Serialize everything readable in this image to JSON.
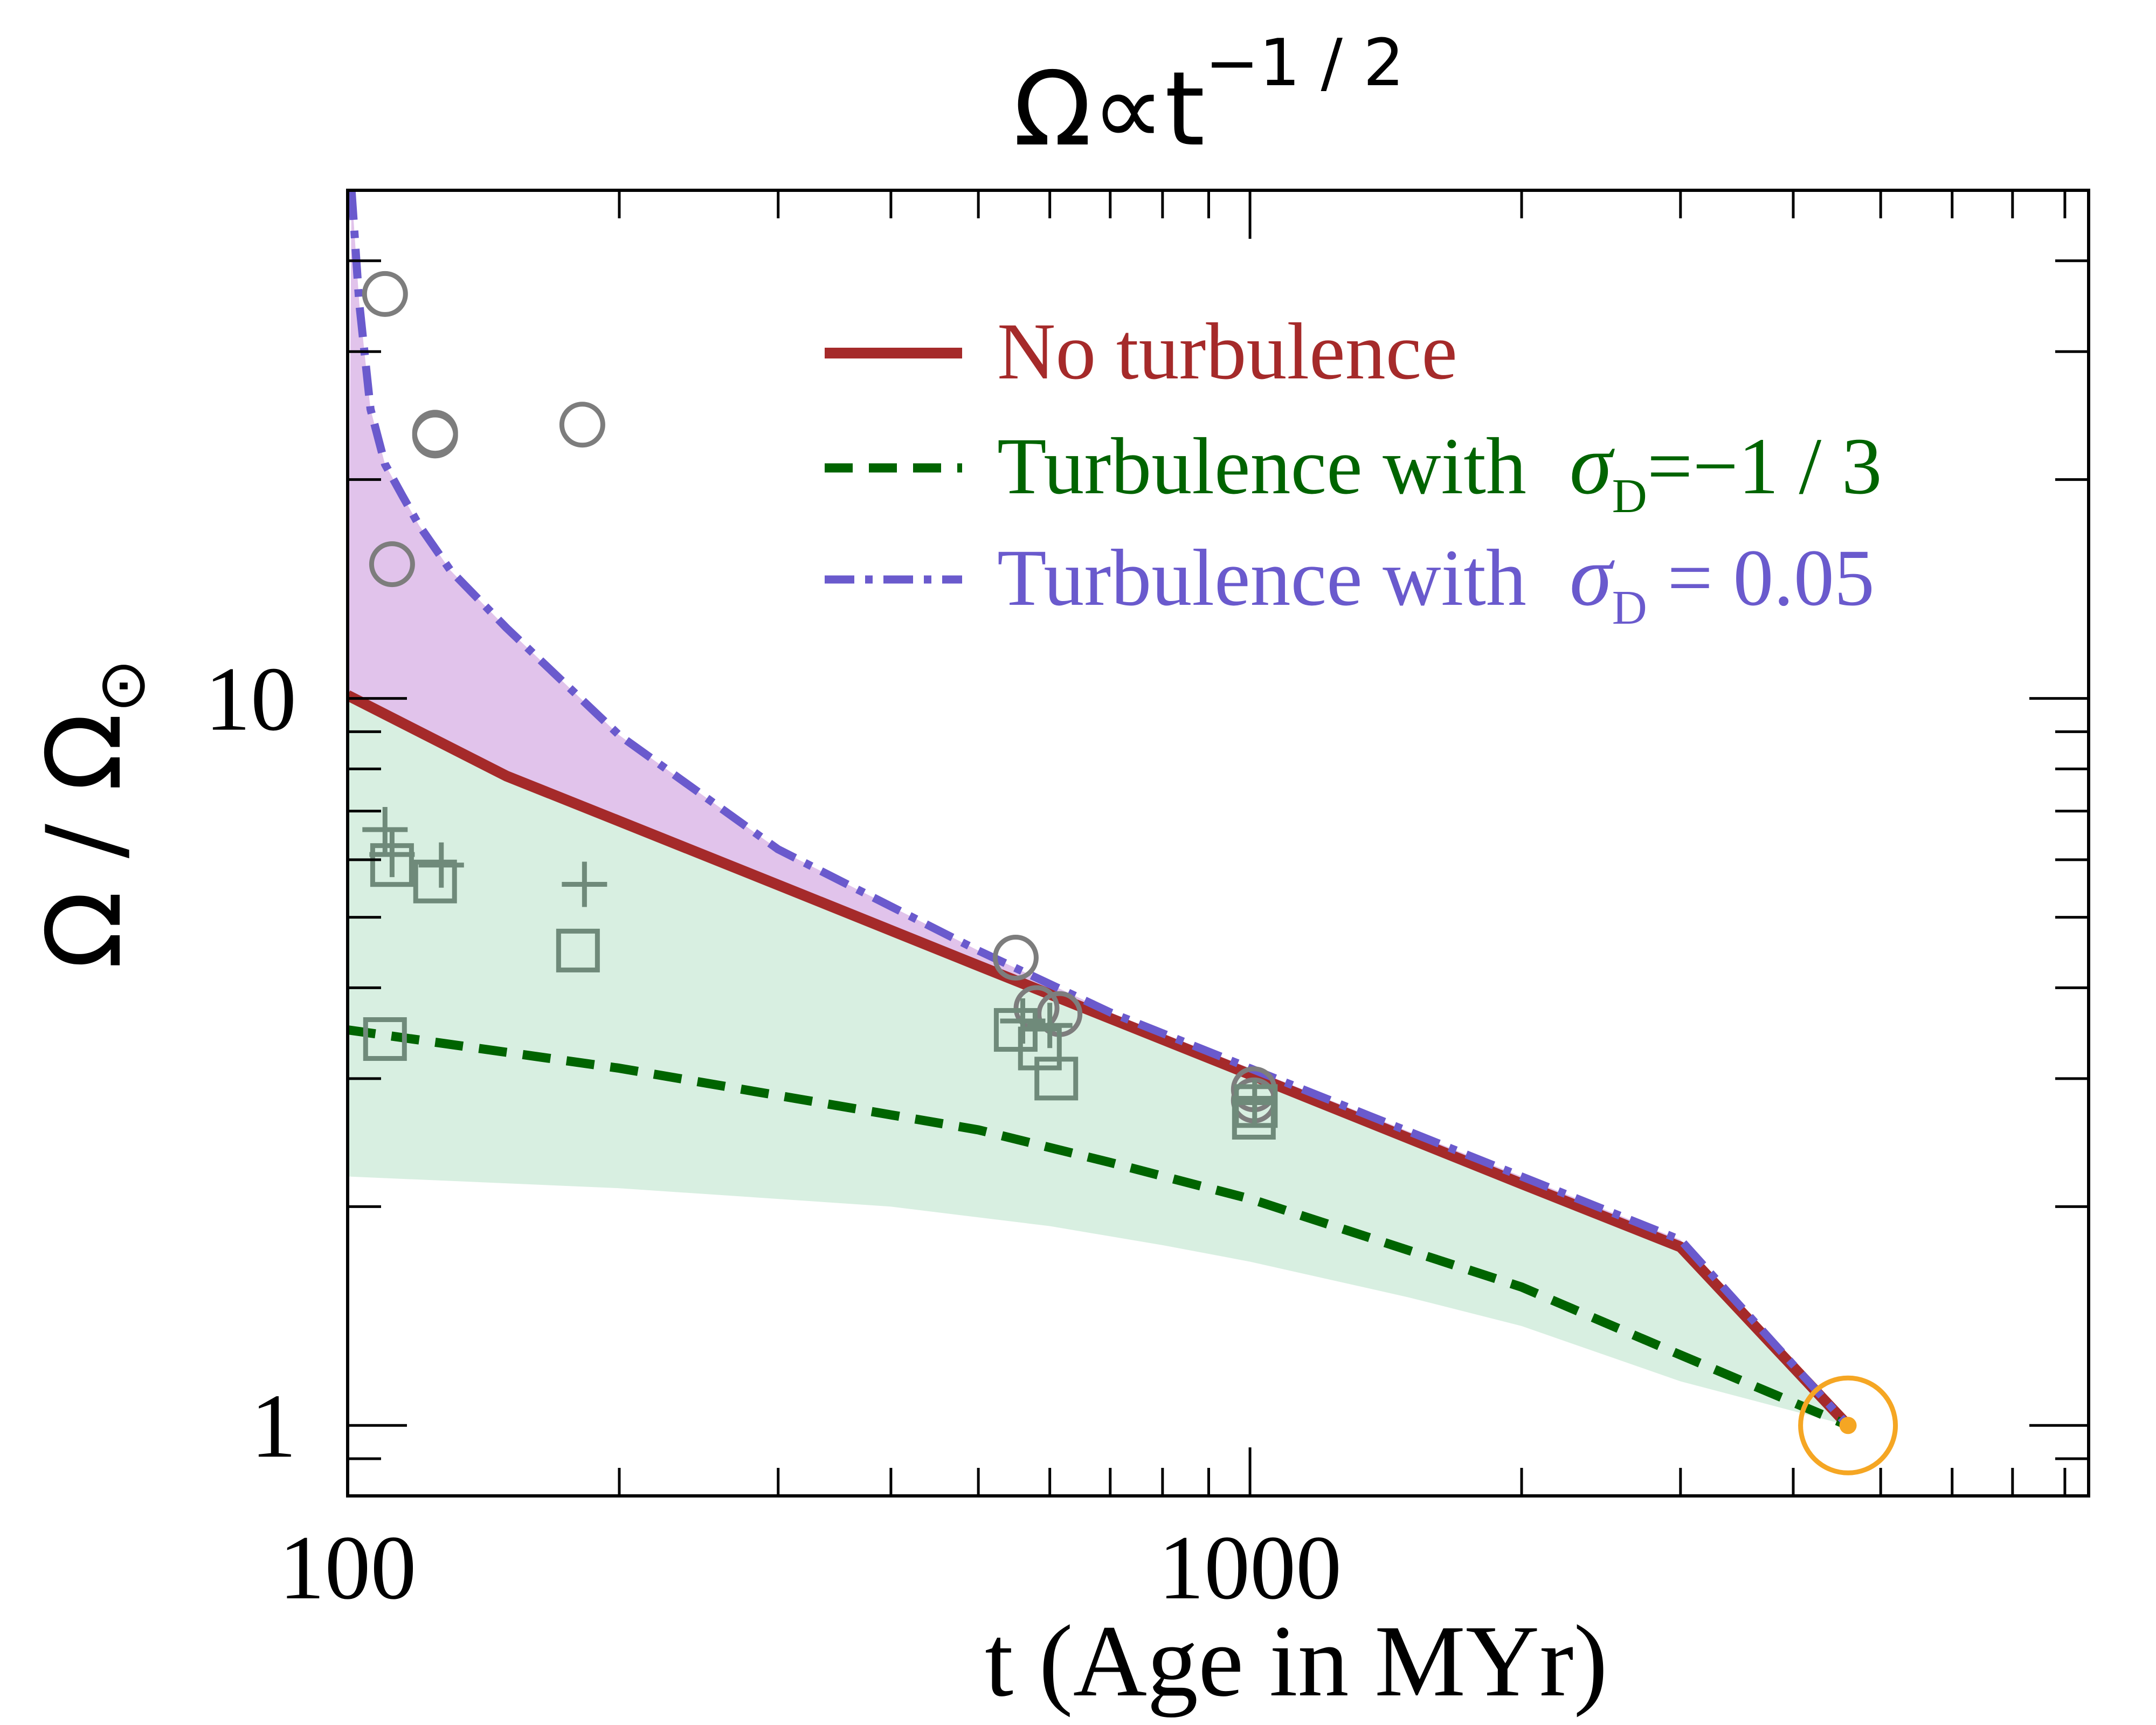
{
  "chart_data": {
    "type": "line",
    "title": {
      "main": "Ω∝t",
      "exponent": "−1 / 2"
    },
    "xlabel": "t (Age in MYr)",
    "ylabel": {
      "main": "Ω / Ω",
      "subscript": "⊙"
    },
    "xscale": "log",
    "yscale": "log",
    "xlim": [
      100,
      8500
    ],
    "ylim": [
      0.8,
      50
    ],
    "x_ticks": [
      {
        "value": 100,
        "label": "100"
      },
      {
        "value": 1000,
        "label": "1000"
      }
    ],
    "y_ticks": [
      {
        "value": 1,
        "label": "1"
      },
      {
        "value": 10,
        "label": "10"
      }
    ],
    "legend_position": "top-right",
    "legend": [
      {
        "label": "No turbulence",
        "color": "#a52a2a",
        "style": "solid"
      },
      {
        "label": "Turbulence with",
        "sigma": "σ",
        "sub": "D",
        "value": "=−1 / 3",
        "color": "#006400",
        "style": "dashed"
      },
      {
        "label": "Turbulence with",
        "sigma": "σ",
        "sub": "D",
        "value": " = 0.05",
        "color": "#6a5acd",
        "style": "dashdot"
      }
    ],
    "series": [
      {
        "name": "No turbulence",
        "color": "#a52a2a",
        "x": [
          100,
          150,
          200,
          300,
          500,
          700,
          1000,
          2000,
          3000,
          4600
        ],
        "y": [
          10.1,
          7.82,
          6.78,
          5.54,
          4.29,
          3.63,
          3.04,
          2.15,
          1.76,
          1.0
        ]
      },
      {
        "name": "Turbulence with σD=−1/3",
        "color": "#006400",
        "x": [
          100,
          200,
          500,
          700,
          1000,
          2000,
          3000,
          4600
        ],
        "y": [
          3.5,
          3.1,
          2.55,
          2.3,
          2.05,
          1.55,
          1.25,
          1.0
        ]
      },
      {
        "name": "Turbulence with σD = 0.05",
        "color": "#6a5acd",
        "x": [
          101,
          103,
          106,
          110,
          115,
          120,
          130,
          150,
          200,
          300,
          500,
          700,
          1000,
          2000,
          3000,
          4600
        ],
        "y": [
          50,
          35,
          25,
          21,
          19,
          17.3,
          15,
          12.5,
          8.9,
          6.2,
          4.5,
          3.7,
          3.1,
          2.2,
          1.8,
          1.0
        ]
      }
    ],
    "bands": [
      {
        "name": "σD = 0.05 region",
        "color": "#e1c3eb",
        "upper_x": [
          101,
          103,
          106,
          110,
          115,
          120,
          130,
          150,
          200,
          300,
          500,
          700,
          1000,
          2000,
          3000,
          4600
        ],
        "upper_y": [
          50,
          35,
          25,
          21,
          19,
          17.3,
          15,
          12.5,
          8.9,
          6.2,
          4.5,
          3.7,
          3.1,
          2.2,
          1.8,
          1.0
        ],
        "lower_x": [
          100,
          150,
          200,
          300,
          500,
          700,
          1000,
          2000,
          3000,
          4600
        ],
        "lower_y": [
          10.1,
          7.82,
          6.78,
          5.54,
          4.29,
          3.63,
          3.04,
          2.15,
          1.76,
          1.0
        ]
      },
      {
        "name": "σD = −1/3 region",
        "color": "#d8efe1",
        "upper_x": [
          100,
          150,
          200,
          300,
          500,
          700,
          1000,
          2000,
          3000,
          4600
        ],
        "upper_y": [
          10.1,
          7.82,
          6.78,
          5.54,
          4.29,
          3.63,
          3.04,
          2.15,
          1.76,
          1.0
        ],
        "lower_x": [
          100,
          200,
          400,
          600,
          800,
          1000,
          1500,
          2000,
          3000
        ],
        "lower_y": [
          2.2,
          2.12,
          2.0,
          1.88,
          1.77,
          1.68,
          1.5,
          1.37,
          1.15
        ]
      }
    ],
    "observations": {
      "circles": [
        {
          "x": 110,
          "y": 36
        },
        {
          "x": 125,
          "y": 23
        },
        {
          "x": 125,
          "y": 23.2
        },
        {
          "x": 182,
          "y": 23.8
        },
        {
          "x": 112,
          "y": 15.3
        },
        {
          "x": 550,
          "y": 4.4
        },
        {
          "x": 580,
          "y": 3.75
        },
        {
          "x": 615,
          "y": 3.68
        },
        {
          "x": 1010,
          "y": 2.9
        },
        {
          "x": 1010,
          "y": 2.8
        }
      ],
      "squares": [
        {
          "x": 112,
          "y": 5.9
        },
        {
          "x": 125,
          "y": 5.6
        },
        {
          "x": 180,
          "y": 4.5
        },
        {
          "x": 110,
          "y": 3.4
        },
        {
          "x": 550,
          "y": 3.5
        },
        {
          "x": 585,
          "y": 3.3
        },
        {
          "x": 610,
          "y": 3.0
        },
        {
          "x": 1010,
          "y": 2.65
        },
        {
          "x": 1015,
          "y": 2.75
        }
      ],
      "crosses": [
        {
          "x": 110,
          "y": 6.6
        },
        {
          "x": 112,
          "y": 6.1
        },
        {
          "x": 127,
          "y": 5.9
        },
        {
          "x": 183,
          "y": 5.55
        },
        {
          "x": 560,
          "y": 3.6
        },
        {
          "x": 600,
          "y": 3.55
        },
        {
          "x": 1012,
          "y": 2.78
        }
      ]
    },
    "sun_marker": {
      "x": 4600,
      "y": 1.0,
      "color": "#f5a623"
    }
  }
}
